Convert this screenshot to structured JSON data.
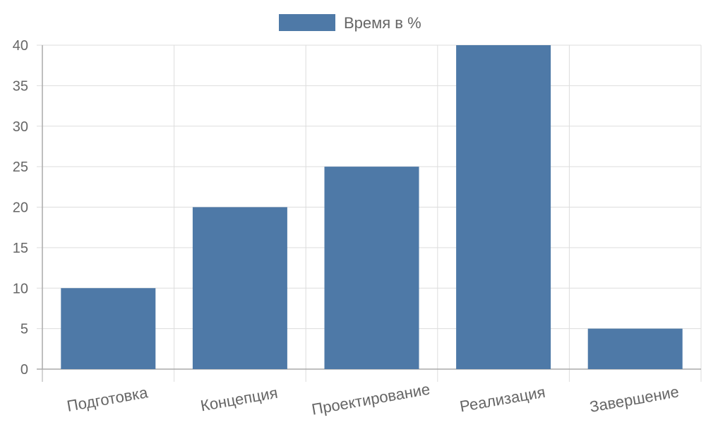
{
  "chart_data": {
    "type": "bar",
    "categories": [
      "Подготовка",
      "Концепция",
      "Проектирование",
      "Реализация",
      "Завершение"
    ],
    "series": [
      {
        "name": "Время в %",
        "values": [
          10,
          20,
          25,
          40,
          5
        ]
      }
    ],
    "ylim": [
      0,
      40
    ],
    "yticks": [
      0,
      5,
      10,
      15,
      20,
      25,
      30,
      35,
      40
    ],
    "grid": true,
    "legend_position": "top-center",
    "colors": {
      "bar": "#4e79a7",
      "grid": "#dddddd",
      "axis": "#aaaaaa",
      "text": "#666666"
    }
  }
}
